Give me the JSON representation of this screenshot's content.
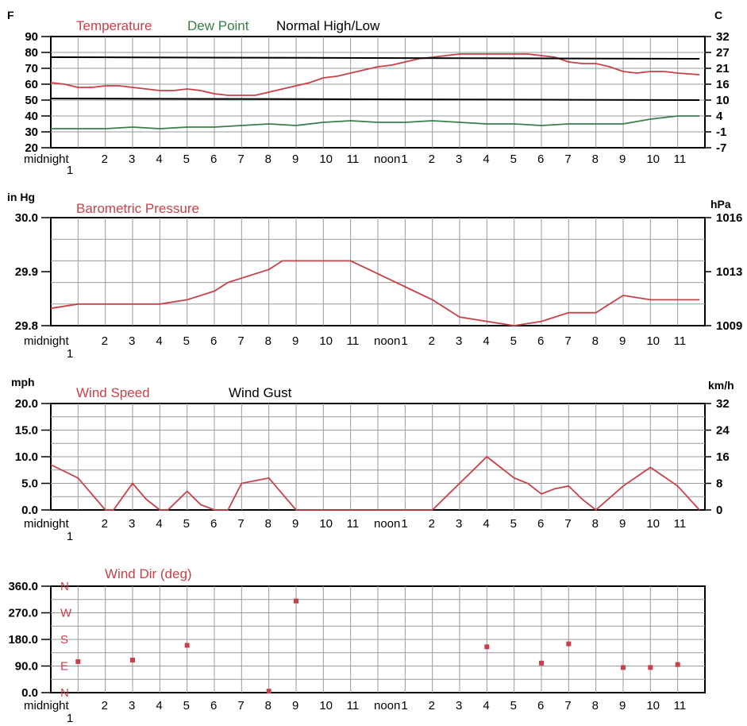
{
  "colors": {
    "temperature": "#c8404a",
    "dew_point": "#3a7d4a",
    "normal": "#000000",
    "pressure": "#c8404a",
    "wind_speed": "#c8404a",
    "wind_gust": "#000000",
    "wind_dir": "#c8404a",
    "grid": "#9a9a9a"
  },
  "x_tick_labels": [
    "midnight",
    "2",
    "3",
    "4",
    "5",
    "6",
    "7",
    "8",
    "9",
    "10",
    "11",
    "noon",
    "1",
    "2",
    "3",
    "4",
    "5",
    "6",
    "7",
    "8",
    "9",
    "10",
    "11"
  ],
  "x_tick_sublabel": "1",
  "chart_data": [
    {
      "type": "line",
      "legend": [
        "Temperature",
        "Dew Point",
        "Normal High/Low"
      ],
      "ylabel_left": "F",
      "ylabel_right": "C",
      "ylim": [
        20,
        90
      ],
      "yticks": [
        "90",
        "80",
        "70",
        "60",
        "50",
        "40",
        "30",
        "20"
      ],
      "yticks_right": [
        "32",
        "27",
        "21",
        "16",
        "10",
        "4",
        "-1",
        "-7"
      ],
      "grid": true,
      "series": [
        {
          "name": "Temperature",
          "x": [
            0,
            0.5,
            1,
            1.5,
            2,
            2.5,
            3,
            3.5,
            4,
            4.5,
            5,
            5.5,
            6,
            6.5,
            7,
            7.5,
            8,
            8.5,
            9,
            9.5,
            10,
            10.5,
            11,
            11.5,
            12,
            12.5,
            13,
            13.5,
            14,
            14.5,
            15,
            15.5,
            16,
            16.5,
            17,
            17.5,
            18,
            18.5,
            19,
            19.5,
            20,
            20.5,
            21,
            21.5,
            22,
            22.5,
            23,
            23.8
          ],
          "y": [
            61,
            60,
            58,
            58,
            59,
            59,
            58,
            57,
            56,
            56,
            57,
            56,
            54,
            53,
            53,
            53,
            55,
            57,
            59,
            61,
            64,
            65,
            67,
            69,
            71,
            72,
            74,
            76,
            77,
            78,
            79,
            79,
            79,
            79,
            79,
            79,
            78,
            77,
            74,
            73,
            73,
            71,
            68,
            67,
            68,
            68,
            67,
            66
          ]
        },
        {
          "name": "Dew Point",
          "x": [
            0,
            1,
            2,
            3,
            4,
            5,
            6,
            7,
            8,
            9,
            10,
            11,
            12,
            13,
            14,
            15,
            16,
            17,
            18,
            19,
            20,
            21,
            22,
            23,
            23.8
          ],
          "y": [
            32,
            32,
            32,
            33,
            32,
            33,
            33,
            34,
            35,
            34,
            36,
            37,
            36,
            36,
            37,
            36,
            35,
            35,
            34,
            35,
            35,
            35,
            38,
            40,
            40
          ]
        },
        {
          "name": "Normal High",
          "x": [
            0,
            23.8
          ],
          "y": [
            77,
            76
          ]
        },
        {
          "name": "Normal Low",
          "x": [
            0,
            23.8
          ],
          "y": [
            51,
            50
          ]
        }
      ]
    },
    {
      "type": "line",
      "title": "Barometric Pressure",
      "ylabel_left": "in Hg",
      "ylabel_right": "hPa",
      "ylim": [
        29.8,
        30.05
      ],
      "yticks": [
        "30.0",
        "29.9",
        "29.8"
      ],
      "yticks_right": [
        "1016",
        "1013",
        "1009"
      ],
      "grid": true,
      "series": [
        {
          "name": "Barometric Pressure",
          "x": [
            0,
            1,
            2,
            3,
            4,
            5,
            6,
            6.5,
            7,
            7.5,
            8,
            8.5,
            9,
            10,
            11,
            12,
            13,
            14,
            15,
            16,
            17,
            18,
            19,
            20,
            20.5,
            21,
            22,
            23,
            23.8
          ],
          "y": [
            29.84,
            29.85,
            29.85,
            29.85,
            29.85,
            29.86,
            29.88,
            29.9,
            29.91,
            29.92,
            29.93,
            29.95,
            29.95,
            29.95,
            29.95,
            29.92,
            29.89,
            29.86,
            29.82,
            29.81,
            29.8,
            29.81,
            29.83,
            29.83,
            29.85,
            29.87,
            29.86,
            29.86,
            29.86
          ]
        }
      ]
    },
    {
      "type": "line",
      "legend": [
        "Wind Speed",
        "Wind Gust"
      ],
      "ylabel_left": "mph",
      "ylabel_right": "km/h",
      "ylim": [
        0,
        20
      ],
      "yticks": [
        "20.0",
        "15.0",
        "10.0",
        "5.0",
        "0.0"
      ],
      "yticks_right": [
        "32",
        "24",
        "16",
        "8",
        "0"
      ],
      "grid": true,
      "series": [
        {
          "name": "Wind Speed",
          "x": [
            0,
            1,
            2,
            2.3,
            3,
            3.5,
            4,
            4.3,
            5,
            5.5,
            6,
            6.5,
            7,
            7.5,
            8,
            8.5,
            9,
            10,
            11,
            12,
            13,
            14,
            15,
            16,
            17,
            17.5,
            18,
            18.5,
            19,
            19.5,
            20,
            21,
            22,
            23,
            23.8
          ],
          "y": [
            8.5,
            6,
            0,
            0,
            5,
            2,
            0,
            0,
            3.5,
            1,
            0,
            0,
            5,
            5.5,
            6,
            3,
            0,
            0,
            0,
            0,
            0,
            0,
            5,
            10,
            6,
            5,
            3,
            4,
            4.5,
            2,
            0,
            4.5,
            8,
            4.5,
            0
          ]
        }
      ]
    },
    {
      "type": "scatter",
      "title": "Wind Dir (deg)",
      "ylim": [
        0,
        360
      ],
      "yticks": [
        "360.0",
        "270.0",
        "180.0",
        "90.0",
        "0.0"
      ],
      "compass_labels": [
        "N",
        "W",
        "S",
        "E",
        "N"
      ],
      "grid": true,
      "series": [
        {
          "name": "Wind Dir (deg)",
          "x": [
            1,
            3,
            5,
            8,
            9,
            16,
            18,
            19,
            21,
            22,
            23
          ],
          "y": [
            105,
            110,
            160,
            5,
            310,
            155,
            100,
            165,
            85,
            85,
            95
          ]
        }
      ]
    }
  ]
}
